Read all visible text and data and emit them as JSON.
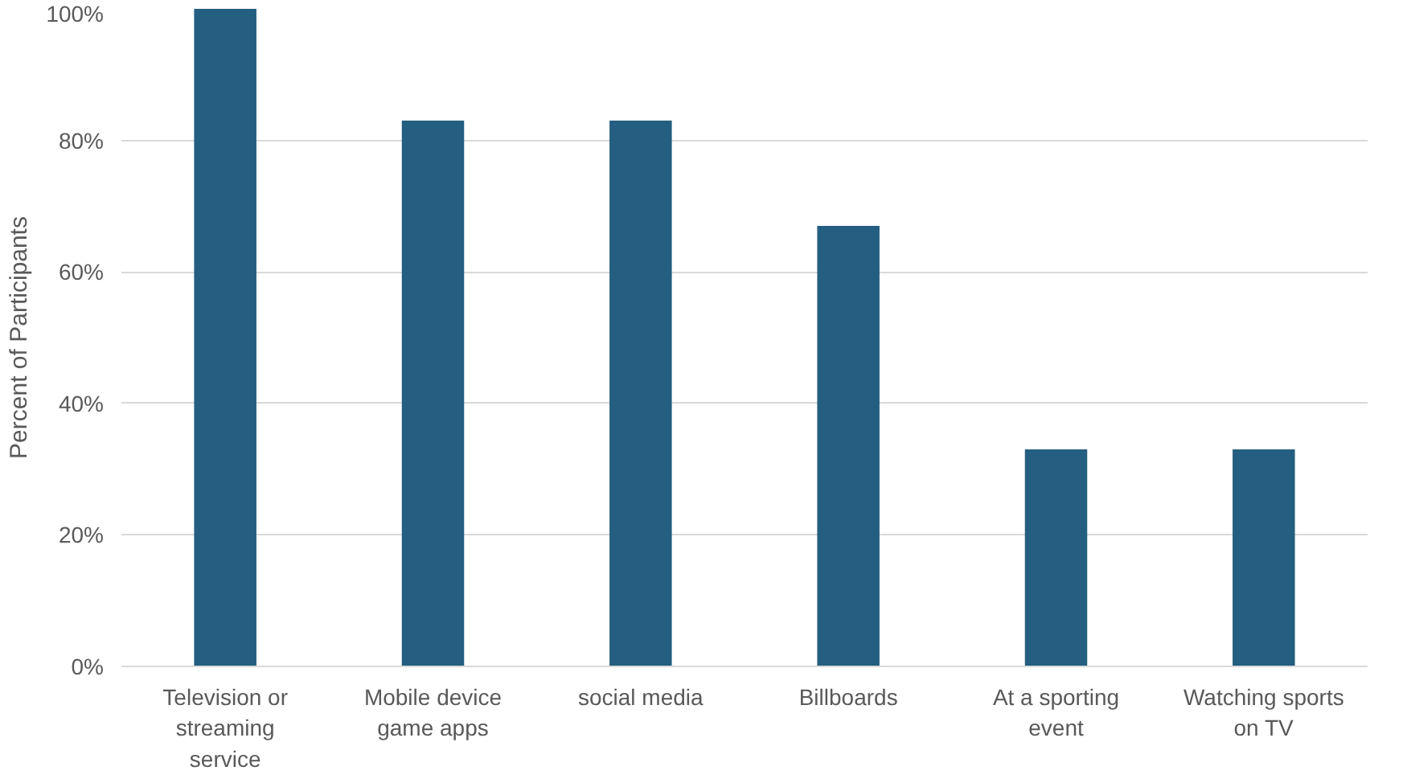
{
  "chart_data": {
    "type": "bar",
    "ylabel": "Percent of Participants",
    "categories": [
      "Television or streaming service",
      "Mobile device game apps",
      "social media",
      "Billboards",
      "At a sporting event",
      "Watching sports on TV"
    ],
    "values": [
      100,
      83,
      83,
      67,
      33,
      33
    ],
    "color": "#245e80",
    "ylim": [
      0,
      100
    ],
    "yticks": [
      {
        "value": 0,
        "label": "0%"
      },
      {
        "value": 20,
        "label": "20%"
      },
      {
        "value": 40,
        "label": "40%"
      },
      {
        "value": 60,
        "label": "60%"
      },
      {
        "value": 80,
        "label": "80%"
      },
      {
        "value": 100,
        "label": "100%"
      }
    ],
    "grid": "y"
  }
}
